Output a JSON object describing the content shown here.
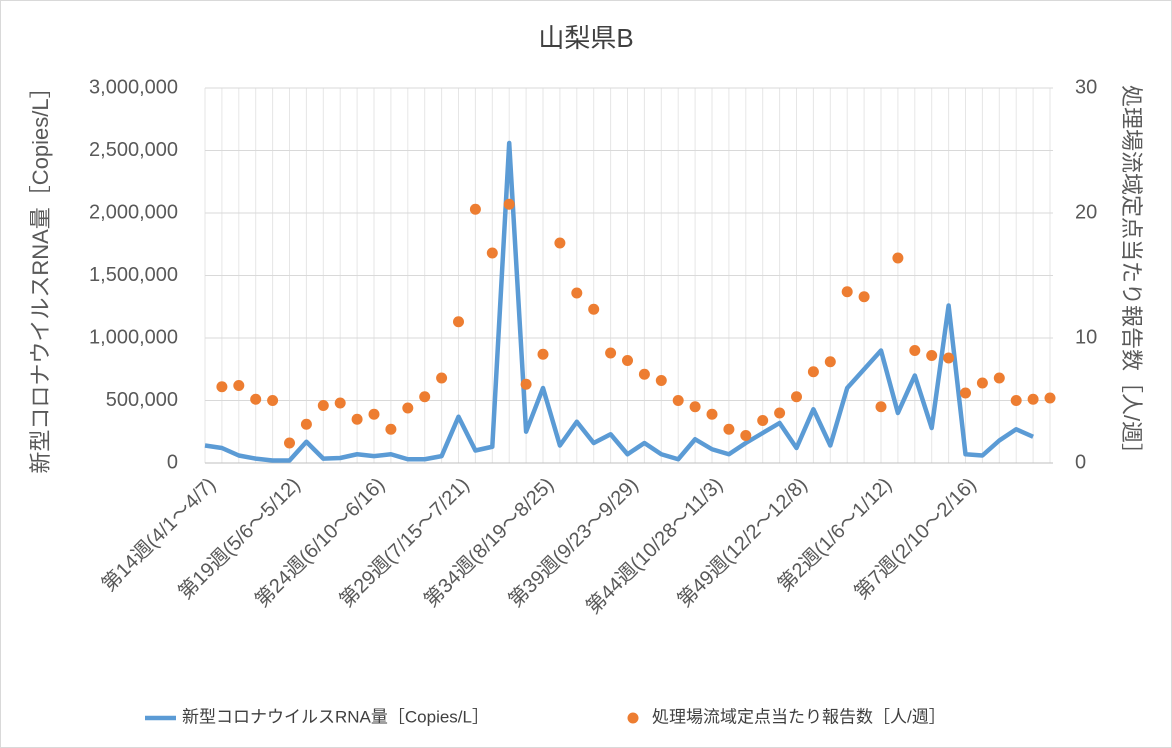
{
  "chart_data": {
    "type": "line_scatter",
    "title": "山梨県B",
    "y_label": "新型コロナウイルスRNA量［Copies/L］",
    "y2_label": "処理場流域定点当たり報告数［人/週］",
    "categories": [
      "第14週(4/1～4/7)",
      null,
      null,
      null,
      null,
      "第19週(5/6～5/12)",
      null,
      null,
      null,
      null,
      "第24週(6/10～6/16)",
      null,
      null,
      null,
      null,
      "第29週(7/15～7/21)",
      null,
      null,
      null,
      null,
      "第34週(8/19～8/25)",
      null,
      null,
      null,
      null,
      "第39週(9/23～9/29)",
      null,
      null,
      null,
      null,
      "第44週(10/28～11/3)",
      null,
      null,
      null,
      null,
      "第49週(12/2～12/8)",
      null,
      null,
      null,
      null,
      "第2週(1/6～1/12)",
      null,
      null,
      null,
      null,
      "第7週(2/10～2/16)",
      null,
      null,
      null,
      null,
      null
    ],
    "series": [
      {
        "name": "新型コロナウイルスRNA量［Copies/L］",
        "color": "#5b9bd5",
        "kind": "line",
        "values": [
          140000,
          120000,
          60000,
          35000,
          20000,
          20000,
          170000,
          35000,
          40000,
          70000,
          55000,
          70000,
          30000,
          30000,
          55000,
          370000,
          100000,
          130000,
          2560000,
          250000,
          600000,
          140000,
          330000,
          160000,
          230000,
          70000,
          160000,
          70000,
          30000,
          190000,
          110000,
          70000,
          160000,
          240000,
          320000,
          120000,
          430000,
          140000,
          600000,
          750000,
          900000,
          400000,
          700000,
          280000,
          1260000,
          70000,
          60000,
          180000,
          270000,
          210000,
          null
        ]
      },
      {
        "name": "処理場流域定点当たり報告数［人/週］",
        "color": "#ed7d31",
        "kind": "scatter",
        "axis": "y2",
        "values": [
          null,
          6.1,
          6.2,
          5.1,
          5.0,
          1.6,
          3.1,
          4.6,
          4.8,
          3.5,
          3.9,
          2.7,
          4.4,
          5.3,
          6.8,
          11.3,
          20.3,
          16.8,
          20.7,
          6.3,
          8.7,
          17.6,
          13.6,
          12.3,
          8.8,
          8.2,
          7.1,
          6.6,
          5.0,
          4.5,
          3.9,
          2.7,
          2.2,
          3.4,
          4.0,
          5.3,
          7.3,
          8.1,
          13.7,
          13.3,
          4.5,
          16.4,
          9.0,
          8.6,
          8.4,
          5.6,
          6.4,
          6.8,
          5.0,
          5.1,
          5.2
        ]
      }
    ],
    "ylim": [
      0,
      3000000
    ],
    "yticks": [
      0,
      {
        "value": 500000,
        "label": "500,000"
      },
      {
        "value": 1000000,
        "label": "1,000,000"
      },
      {
        "value": 1500000,
        "label": "1,500,000"
      },
      {
        "value": 2000000,
        "label": "2,000,000"
      },
      {
        "value": 2500000,
        "label": "2,500,000"
      },
      {
        "value": 3000000,
        "label": "3,000,000"
      }
    ],
    "y2lim": [
      0,
      30
    ],
    "y2ticks": [
      0,
      10,
      20,
      30
    ],
    "grid": true,
    "legend": "bottom"
  }
}
